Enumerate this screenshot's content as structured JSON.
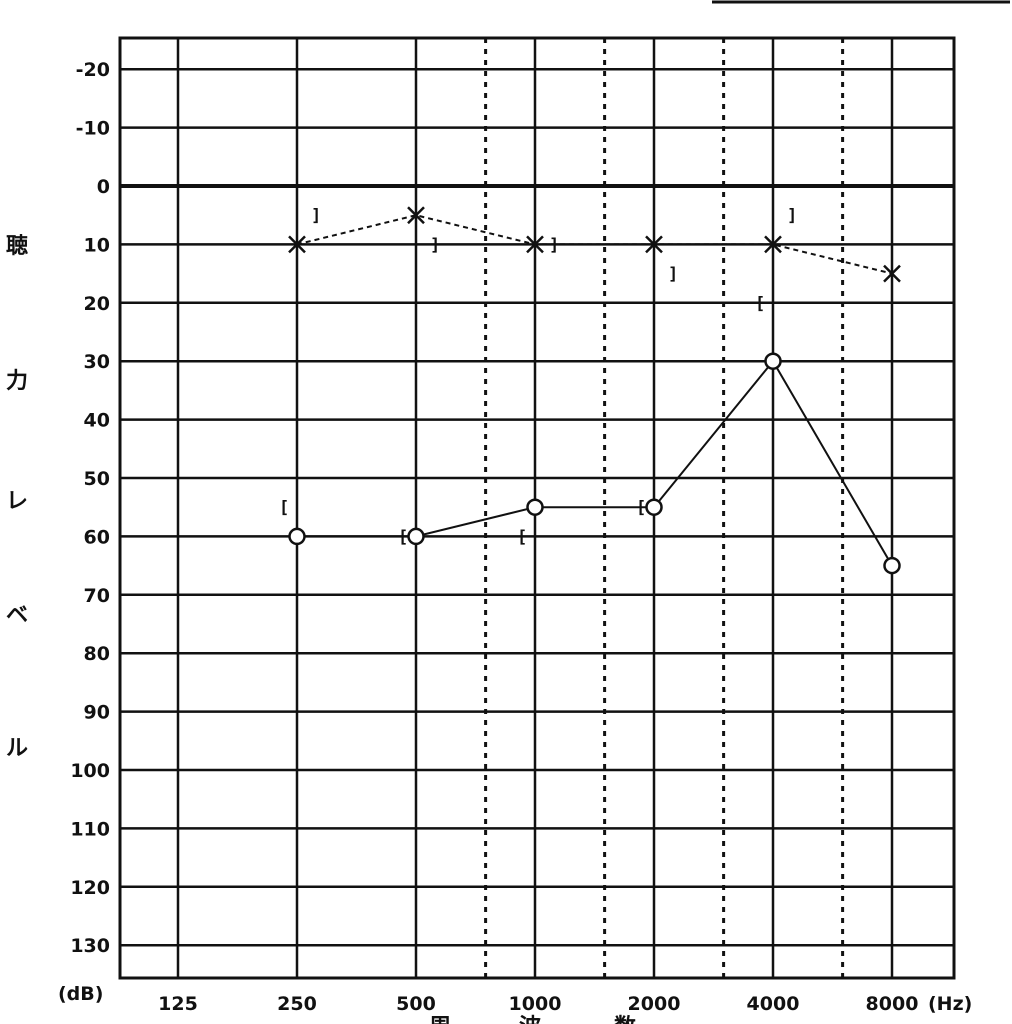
{
  "chart_data": {
    "type": "line",
    "xlabel": "周 波 数",
    "ylabel": "聴力レベル",
    "x_unit": "(Hz)",
    "y_unit": "(dB)",
    "scale_x": "log2",
    "y_inverted": true,
    "ylim": [
      -25,
      135
    ],
    "grid": true,
    "x_ticks": [
      125,
      250,
      500,
      1000,
      2000,
      4000,
      8000
    ],
    "x_tick_labels": [
      "125",
      "250",
      "500",
      "1000",
      "2000",
      "4000",
      "8000"
    ],
    "dotted_x": [
      750,
      1500,
      3000,
      6000
    ],
    "y_ticks": [
      -20,
      -10,
      0,
      10,
      20,
      30,
      40,
      50,
      60,
      70,
      80,
      90,
      100,
      110,
      120,
      130
    ],
    "y_tick_labels": [
      "-20",
      "-10",
      "0",
      "10",
      "20",
      "30",
      "40",
      "50",
      "60",
      "70",
      "80",
      "90",
      "100",
      "110",
      "120",
      "130"
    ],
    "series": [
      {
        "marker": "x",
        "dashed": true,
        "x": [
          250,
          500,
          1000,
          2000,
          4000,
          8000
        ],
        "y": [
          10,
          5,
          10,
          10,
          10,
          15
        ]
      },
      {
        "marker": "o",
        "dashed": false,
        "x": [
          250,
          500,
          1000,
          2000,
          4000,
          8000
        ],
        "y": [
          60,
          60,
          55,
          55,
          30,
          65
        ]
      }
    ],
    "bone_conduction": [
      {
        "symbol": "]",
        "x": 250,
        "y": 5
      },
      {
        "symbol": "]",
        "x": 500,
        "y": 10
      },
      {
        "symbol": "]",
        "x": 1000,
        "y": 10
      },
      {
        "symbol": "]",
        "x": 2000,
        "y": 15
      },
      {
        "symbol": "]",
        "x": 4000,
        "y": 5
      },
      {
        "symbol": "[",
        "x": 250,
        "y": 55
      },
      {
        "symbol": "[",
        "x": 500,
        "y": 60
      },
      {
        "symbol": "[",
        "x": 1000,
        "y": 60
      },
      {
        "symbol": "[",
        "x": 2000,
        "y": 55
      },
      {
        "symbol": "[",
        "x": 4000,
        "y": 20
      }
    ]
  }
}
